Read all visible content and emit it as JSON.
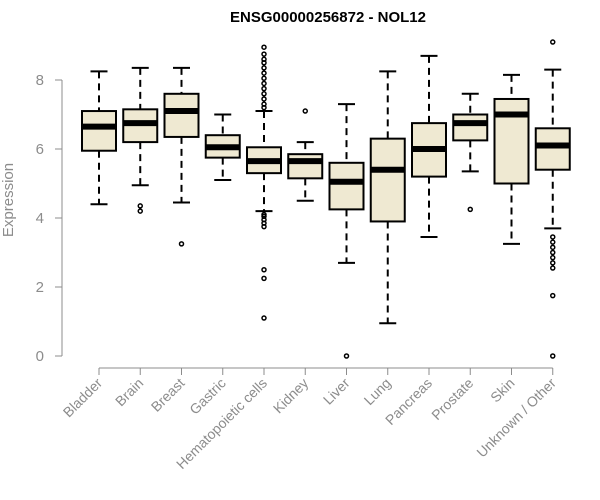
{
  "chart_data": {
    "type": "box",
    "title": "ENSG00000256872 - NOL12",
    "xlabel": "",
    "ylabel": "Expression",
    "ylim": [
      0,
      9.1
    ],
    "yticks": [
      0,
      2,
      4,
      6,
      8
    ],
    "grid": false,
    "legend": "none",
    "colors": {
      "box_fill": "#efe9d2",
      "stroke": "#000000",
      "axis": "#8c8c8c",
      "text": "#8c8c8c"
    },
    "categories": [
      "Bladder",
      "Brain",
      "Breast",
      "Gastric",
      "Hematopoietic cells",
      "Kidney",
      "Liver",
      "Lung",
      "Pancreas",
      "Prostate",
      "Skin",
      "Unknown / Other"
    ],
    "boxes": [
      {
        "category": "Bladder",
        "whisker_low": 4.4,
        "q1": 5.95,
        "median": 6.65,
        "q3": 7.1,
        "whisker_high": 8.25,
        "outliers": []
      },
      {
        "category": "Brain",
        "whisker_low": 4.95,
        "q1": 6.2,
        "median": 6.75,
        "q3": 7.15,
        "whisker_high": 8.35,
        "outliers": [
          4.2,
          4.35
        ]
      },
      {
        "category": "Breast",
        "whisker_low": 4.45,
        "q1": 6.35,
        "median": 7.1,
        "q3": 7.6,
        "whisker_high": 8.35,
        "outliers": [
          3.25
        ]
      },
      {
        "category": "Gastric",
        "whisker_low": 5.1,
        "q1": 5.75,
        "median": 6.05,
        "q3": 6.4,
        "whisker_high": 7.0,
        "outliers": []
      },
      {
        "category": "Hematopoietic cells",
        "whisker_low": 4.2,
        "q1": 5.3,
        "median": 5.65,
        "q3": 6.05,
        "whisker_high": 7.1,
        "outliers": [
          1.1,
          2.25,
          2.5,
          3.75,
          3.85,
          3.95,
          4.05,
          4.1,
          7.2,
          7.3,
          7.45,
          7.6,
          7.75,
          7.9,
          8.05,
          8.2,
          8.35,
          8.5,
          8.6,
          8.75,
          8.95
        ]
      },
      {
        "category": "Kidney",
        "whisker_low": 4.5,
        "q1": 5.15,
        "median": 5.65,
        "q3": 5.85,
        "whisker_high": 6.2,
        "outliers": [
          7.1
        ]
      },
      {
        "category": "Liver",
        "whisker_low": 2.7,
        "q1": 4.25,
        "median": 5.05,
        "q3": 5.6,
        "whisker_high": 7.3,
        "outliers": [
          0.0
        ]
      },
      {
        "category": "Lung",
        "whisker_low": 0.95,
        "q1": 3.9,
        "median": 5.4,
        "q3": 6.3,
        "whisker_high": 8.25,
        "outliers": []
      },
      {
        "category": "Pancreas",
        "whisker_low": 3.45,
        "q1": 5.2,
        "median": 6.0,
        "q3": 6.75,
        "whisker_high": 8.7,
        "outliers": []
      },
      {
        "category": "Prostate",
        "whisker_low": 5.35,
        "q1": 6.25,
        "median": 6.75,
        "q3": 7.0,
        "whisker_high": 7.6,
        "outliers": [
          4.25
        ]
      },
      {
        "category": "Skin",
        "whisker_low": 3.25,
        "q1": 5.0,
        "median": 7.0,
        "q3": 7.45,
        "whisker_high": 8.15,
        "outliers": []
      },
      {
        "category": "Unknown / Other",
        "whisker_low": 3.7,
        "q1": 5.4,
        "median": 6.1,
        "q3": 6.6,
        "whisker_high": 8.3,
        "outliers": [
          0.0,
          1.75,
          2.55,
          2.7,
          2.85,
          3.0,
          3.15,
          3.3,
          3.45,
          9.1
        ]
      }
    ]
  }
}
